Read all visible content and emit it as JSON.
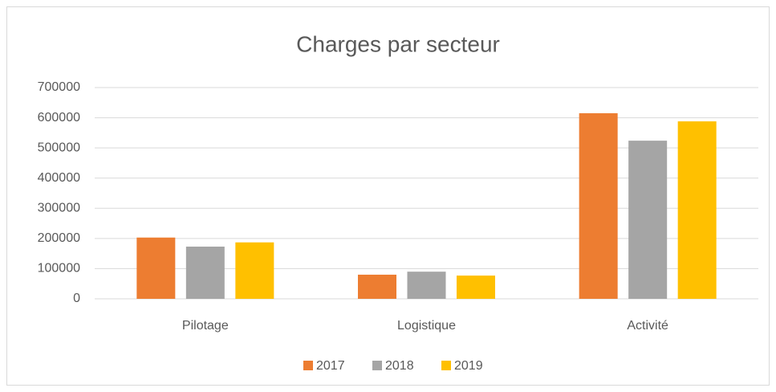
{
  "chart_data": {
    "type": "bar",
    "title": "Charges par secteur",
    "categories": [
      "Pilotage",
      "Logistique",
      "Activité"
    ],
    "series": [
      {
        "name": "2017",
        "color": "#ed7d31",
        "values": [
          203000,
          80000,
          615000
        ]
      },
      {
        "name": "2018",
        "color": "#a5a5a5",
        "values": [
          173000,
          90000,
          524000
        ]
      },
      {
        "name": "2019",
        "color": "#ffc000",
        "values": [
          187000,
          77000,
          588000
        ]
      }
    ],
    "ylim": [
      0,
      700000
    ],
    "yticks": [
      0,
      100000,
      200000,
      300000,
      400000,
      500000,
      600000,
      700000
    ],
    "grid": true,
    "legend": "bottom"
  }
}
